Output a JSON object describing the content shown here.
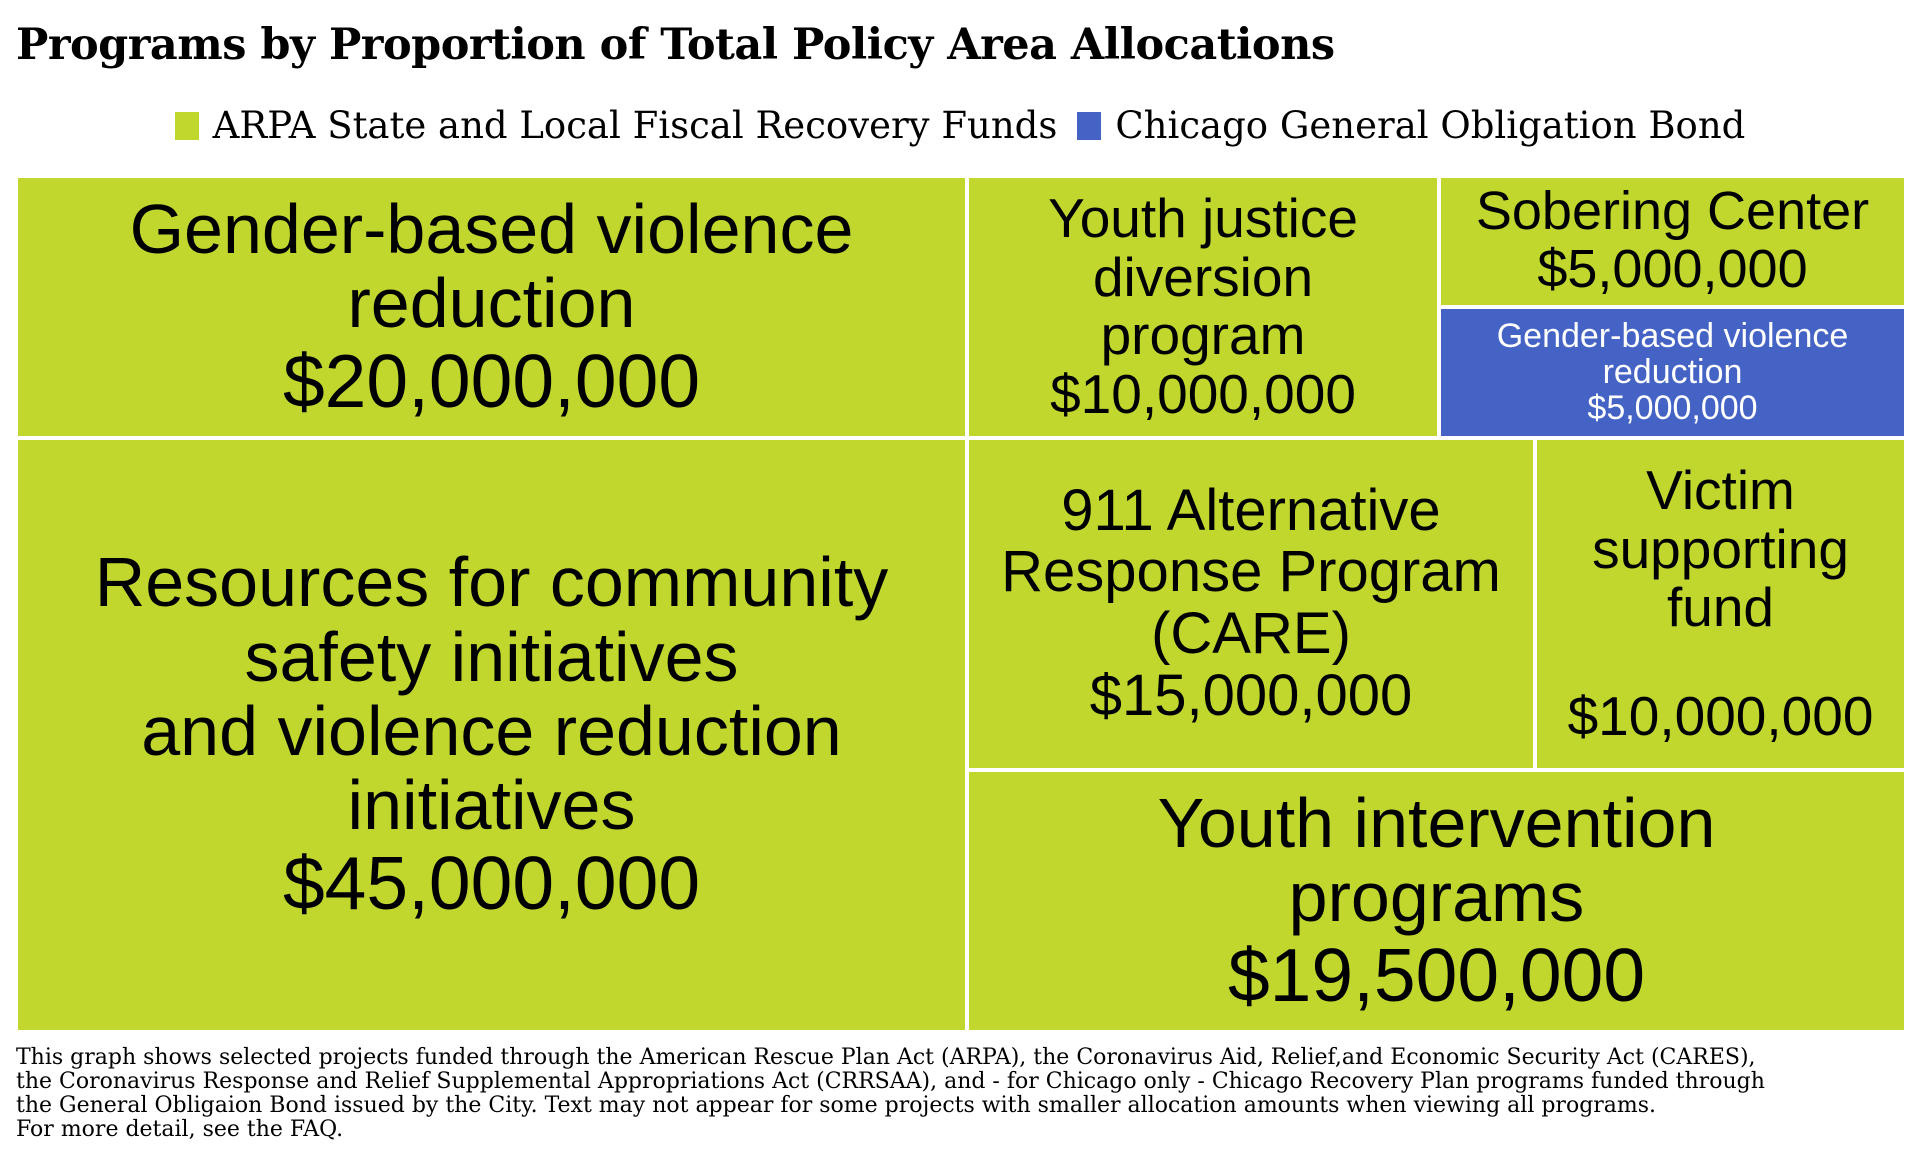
{
  "chart_data": {
    "type": "treemap",
    "title": "Programs by Proportion of Total Policy Area Allocations",
    "legend": [
      {
        "name": "ARPA State and Local Fiscal Recovery Funds",
        "color": "#c1d72e"
      },
      {
        "name": "Chicago General Obligation Bond",
        "color": "#4463c5"
      }
    ],
    "items": [
      {
        "label": "Gender-based violence reduction",
        "amount": "$20,000,000",
        "value": 20000000,
        "fund": "ARPA State and Local Fiscal Recovery Funds"
      },
      {
        "label": "Youth justice diversion program",
        "amount": "$10,000,000",
        "value": 10000000,
        "fund": "ARPA State and Local Fiscal Recovery Funds"
      },
      {
        "label": "Sobering Center",
        "amount": "$5,000,000",
        "value": 5000000,
        "fund": "ARPA State and Local Fiscal Recovery Funds"
      },
      {
        "label": "Gender-based violence reduction",
        "amount": "$5,000,000",
        "value": 5000000,
        "fund": "Chicago General Obligation Bond"
      },
      {
        "label": "Resources for community safety initiatives and violence reduction initiatives",
        "amount": "$45,000,000",
        "value": 45000000,
        "fund": "ARPA State and Local Fiscal Recovery Funds"
      },
      {
        "label": "911 Alternative Response Program (CARE)",
        "amount": "$15,000,000",
        "value": 15000000,
        "fund": "ARPA State and Local Fiscal Recovery Funds"
      },
      {
        "label": "Victim supporting fund",
        "amount": "$10,000,000",
        "value": 10000000,
        "fund": "ARPA State and Local Fiscal Recovery Funds"
      },
      {
        "label": "Youth intervention programs",
        "amount": "$19,500,000",
        "value": 19500000,
        "fund": "ARPA State and Local Fiscal Recovery Funds"
      }
    ]
  },
  "footnote": [
    "This graph shows selected projects funded through the American Rescue Plan Act (ARPA), the Coronavirus Aid, Relief,and Economic Security Act (CARES),",
    "the Coronavirus Response and Relief Supplemental Appropriations Act (CRRSAA), and - for Chicago only - Chicago Recovery Plan programs funded through",
    "the General Obligaion Bond issued by the City. Text may not appear for some projects with smaller allocation amounts when viewing all programs.",
    "For more detail, see the FAQ."
  ]
}
